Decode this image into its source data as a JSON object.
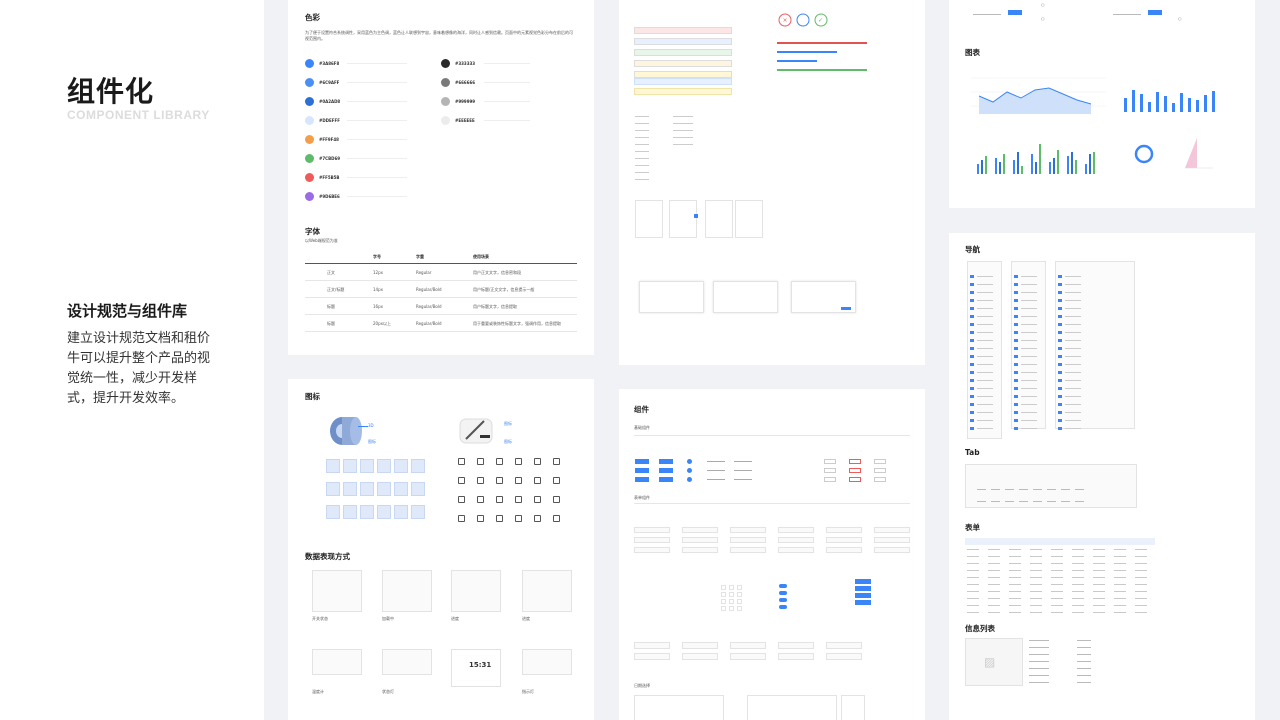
{
  "hero": {
    "title": "组件化",
    "subtitle": "COMPONENT LIBRARY",
    "section_title": "设计规范与组件库",
    "description": "建立设计规范文档和租价牛可以提升整个产品的视觉统一性，减少开发样式，提升开发效率。"
  },
  "colors_card": {
    "title": "色彩",
    "intro": "为了便于设置符合系统调性，采用蓝色为主色调，蓝色让人联想到宇宙，意味着想像的海洋，同时让人感到信赖。页面中的元素视觉色彩分布在前后的可视范围内。",
    "swatches_left": [
      {
        "color": "#3a86f8",
        "code": "#3A86F8"
      },
      {
        "color": "#4a8ff4",
        "code": "#6C9AFF"
      },
      {
        "color": "#2c6fd6",
        "code": "#0A2AD8"
      },
      {
        "color": "#d6e6ff",
        "code": "#DDEFFF"
      },
      {
        "color": "#f59e4a",
        "code": "#FF9F48"
      },
      {
        "color": "#5dbb6a",
        "code": "#7CBD69"
      },
      {
        "color": "#ef5b5b",
        "code": "#FF5B5B"
      },
      {
        "color": "#9b6be6",
        "code": "#9D6BE6"
      }
    ],
    "swatches_right": [
      {
        "color": "#2a2a2a",
        "code": "#333333"
      },
      {
        "color": "#7a7a7a",
        "code": "#666666"
      },
      {
        "color": "#b4b4b4",
        "code": "#999999"
      },
      {
        "color": "#ececec",
        "code": "#EEEEEE"
      }
    ],
    "font_title": "字体",
    "font_subtitle": "以Web端规范为准",
    "font_table": {
      "headers": [
        "",
        "字号",
        "字重",
        "使用场景"
      ],
      "rows": [
        [
          "正文",
          "12px",
          "Regular",
          "用户正文文字，信息密和段"
        ],
        [
          "正文/标题",
          "14px",
          "Regular/Bold",
          "用户标题/正文文字，信息提示一般"
        ],
        [
          "标题",
          "16px",
          "Regular/Bold",
          "用户标题文字，信息提取"
        ],
        [
          "标题",
          "20px以上",
          "Regular/Bold",
          "用于重要或装饰性标题文字，强调作用，信息提取"
        ]
      ]
    }
  },
  "icons_card": {
    "title": "图标",
    "label_a": "3D",
    "label_b": "图标",
    "data_title": "数据表现方式",
    "data_labels": [
      "开关状态",
      "加载中",
      "进度",
      "进度",
      "温度计",
      "状态灯",
      "",
      "指示灯"
    ],
    "counter": "15:31"
  },
  "components_card": {
    "title": "组件",
    "sub": "基础组件",
    "section2": "表单组件",
    "section3": "日期选择"
  },
  "charts_card": {
    "title": "图表"
  },
  "nav_card": {
    "title": "导航",
    "tab_title": "Tab",
    "table_title": "表单",
    "info_title": "信息列表"
  }
}
